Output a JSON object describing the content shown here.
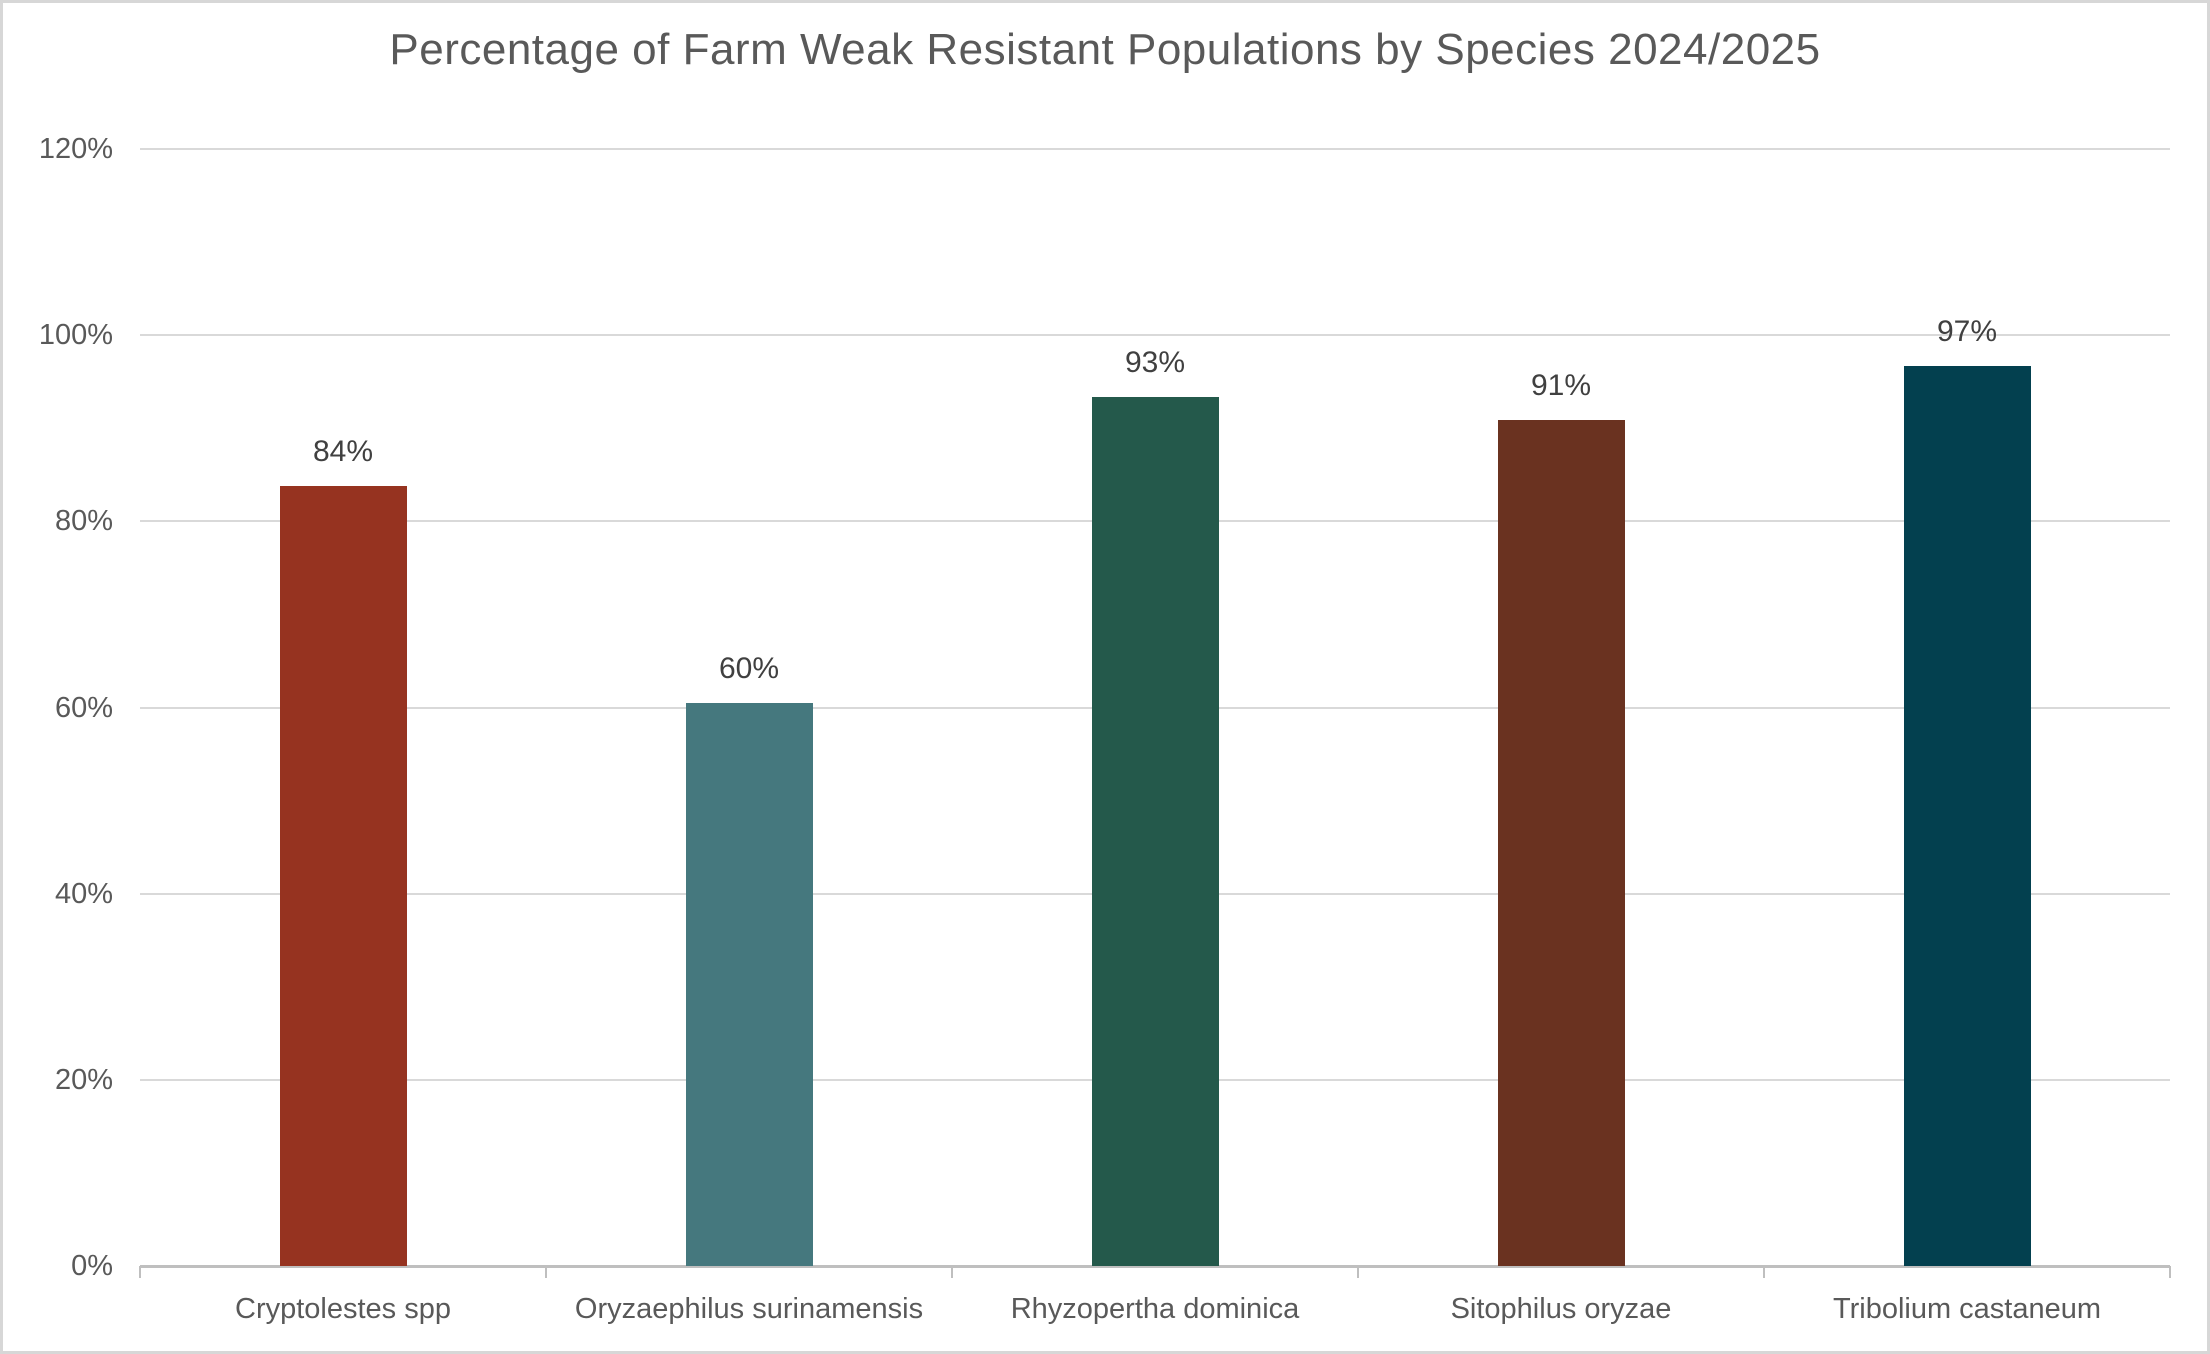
{
  "chart_data": {
    "type": "bar",
    "title": "Percentage of Farm Weak Resistant Populations by Species 2024/2025",
    "categories": [
      "Cryptolestes spp",
      "Oryzaephilus surinamensis",
      "Rhyzopertha dominica",
      "Sitophilus oryzae",
      "Tribolium castaneum"
    ],
    "values": [
      84,
      60,
      93,
      91,
      97
    ],
    "display_values": [
      83.8,
      60.5,
      93.4,
      90.9,
      96.7
    ],
    "data_labels": [
      "84%",
      "60%",
      "93%",
      "91%",
      "97%"
    ],
    "bar_colors": [
      "#963320",
      "#45787E",
      "#24594B",
      "#6A3220",
      "#03404F"
    ],
    "xlabel": "",
    "ylabel": "",
    "ylim": [
      0,
      120
    ],
    "ytick_step": 20,
    "ytick_labels": [
      "0%",
      "20%",
      "40%",
      "60%",
      "80%",
      "100%",
      "120%"
    ],
    "grid": true,
    "legend": "none",
    "colors": {
      "background": "#FFFFFF",
      "canvas_border": "#D7D7D7",
      "title_text": "#595959",
      "axis_text": "#595959",
      "data_label_text": "#404040",
      "gridline": "#D9D9D9",
      "axis_line": "#BFBFBF"
    }
  }
}
